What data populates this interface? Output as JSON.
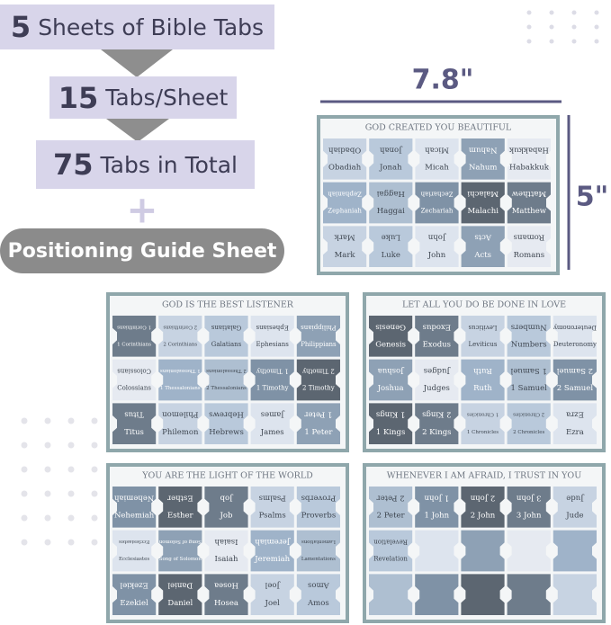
{
  "banners": [
    {
      "number": "5",
      "text": "Sheets of Bible Tabs"
    },
    {
      "number": "15",
      "text": "Tabs/Sheet"
    },
    {
      "number": "75",
      "text": "Tabs in Total"
    }
  ],
  "plus": "+",
  "guide": "Positioning Guide Sheet",
  "width_label": "7.8\"",
  "height_label": "5\"",
  "sheets": [
    {
      "title": "GOD CREATED YOU BEAUTIFUL",
      "tabs": [
        "Obadiah",
        "Jonah",
        "Micah",
        "Nahum",
        "Habakkuk",
        "Zephaniah",
        "Haggai",
        "Zechariah",
        "Malachi",
        "Matthew",
        "Mark",
        "Luke",
        "John",
        "Acts",
        "Romans"
      ]
    },
    {
      "title": "GOD IS THE BEST LISTENER",
      "tabs": [
        "1 Corinthians",
        "2 Corinthians",
        "Galatians",
        "Ephesians",
        "Philippians",
        "Colossians",
        "1 Thessalonians",
        "2 Thessalonians",
        "1 Timothy",
        "2 Timothy",
        "Titus",
        "Philemon",
        "Hebrews",
        "James",
        "1 Peter"
      ]
    },
    {
      "title": "LET ALL YOU DO BE DONE IN LOVE",
      "tabs": [
        "Genesis",
        "Exodus",
        "Leviticus",
        "Numbers",
        "Deuteronomy",
        "Joshua",
        "Judges",
        "Ruth",
        "1 Samuel",
        "2 Samuel",
        "1 Kings",
        "2 Kings",
        "1 Chronicles",
        "2 Chronicles",
        "Ezra"
      ]
    },
    {
      "title": "YOU ARE THE LIGHT OF THE WORLD",
      "tabs": [
        "Nehemiah",
        "Esther",
        "Job",
        "Psalms",
        "Proverbs",
        "Ecclesiastes",
        "Song of Solomon",
        "Isaiah",
        "Jeremiah",
        "Lamentations",
        "Ezekiel",
        "Daniel",
        "Hosea",
        "Joel",
        "Amos"
      ]
    },
    {
      "title": "WHENEVER I AM AFRAID, I TRUST IN YOU",
      "tabs": [
        "2 Peter",
        "1 John",
        "2 John",
        "3 John",
        "Jude",
        "Revelation"
      ]
    }
  ]
}
